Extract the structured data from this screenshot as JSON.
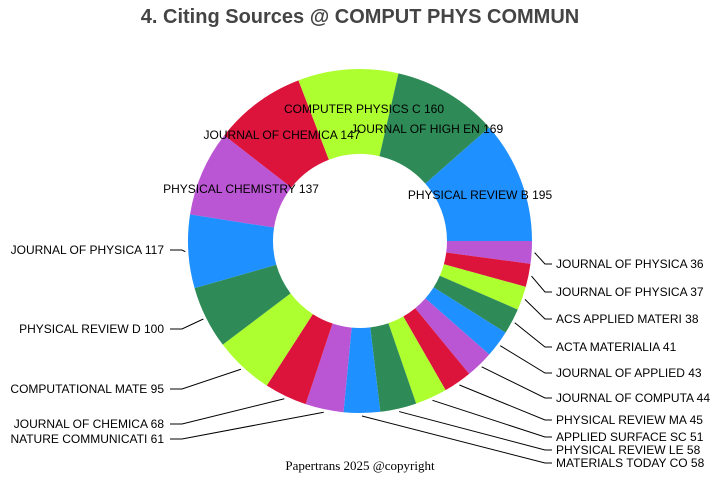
{
  "chart_data": {
    "type": "pie",
    "donut": true,
    "title": "4. Citing Sources @ COMPUT PHYS COMMUN",
    "direction": "clockwise from 3 o'clock, ascending",
    "colors": [
      "#BA55D3",
      "#DC143C",
      "#ADFF2F",
      "#2E8B57",
      "#1E90FF"
    ],
    "slices": [
      {
        "label": "JOURNAL OF PHYSICA",
        "value": 36
      },
      {
        "label": "JOURNAL OF PHYSICA",
        "value": 37
      },
      {
        "label": "ACS APPLIED MATERI",
        "value": 38
      },
      {
        "label": "ACTA MATERIALIA",
        "value": 41
      },
      {
        "label": "JOURNAL OF APPLIED",
        "value": 43
      },
      {
        "label": "JOURNAL OF COMPUTA",
        "value": 44
      },
      {
        "label": "PHYSICAL REVIEW MA",
        "value": 45
      },
      {
        "label": "APPLIED SURFACE SC",
        "value": 51
      },
      {
        "label": "PHYSICAL REVIEW LE",
        "value": 58
      },
      {
        "label": "MATERIALS TODAY CO",
        "value": 58
      },
      {
        "label": "NATURE COMMUNICATI",
        "value": 61
      },
      {
        "label": "JOURNAL OF CHEMICA",
        "value": 68
      },
      {
        "label": "COMPUTATIONAL MATE",
        "value": 95
      },
      {
        "label": "PHYSICAL REVIEW D",
        "value": 100
      },
      {
        "label": "JOURNAL OF PHYSICA",
        "value": 117
      },
      {
        "label": "PHYSICAL CHEMISTRY",
        "value": 137
      },
      {
        "label": "JOURNAL OF CHEMICA",
        "value": 147
      },
      {
        "label": "COMPUTER PHYSICS C",
        "value": 160
      },
      {
        "label": "JOURNAL OF HIGH EN",
        "value": 169
      },
      {
        "label": "PHYSICAL REVIEW B",
        "value": 195
      }
    ]
  },
  "footer": {
    "credit": "Papertrans 2025 @copyright"
  }
}
